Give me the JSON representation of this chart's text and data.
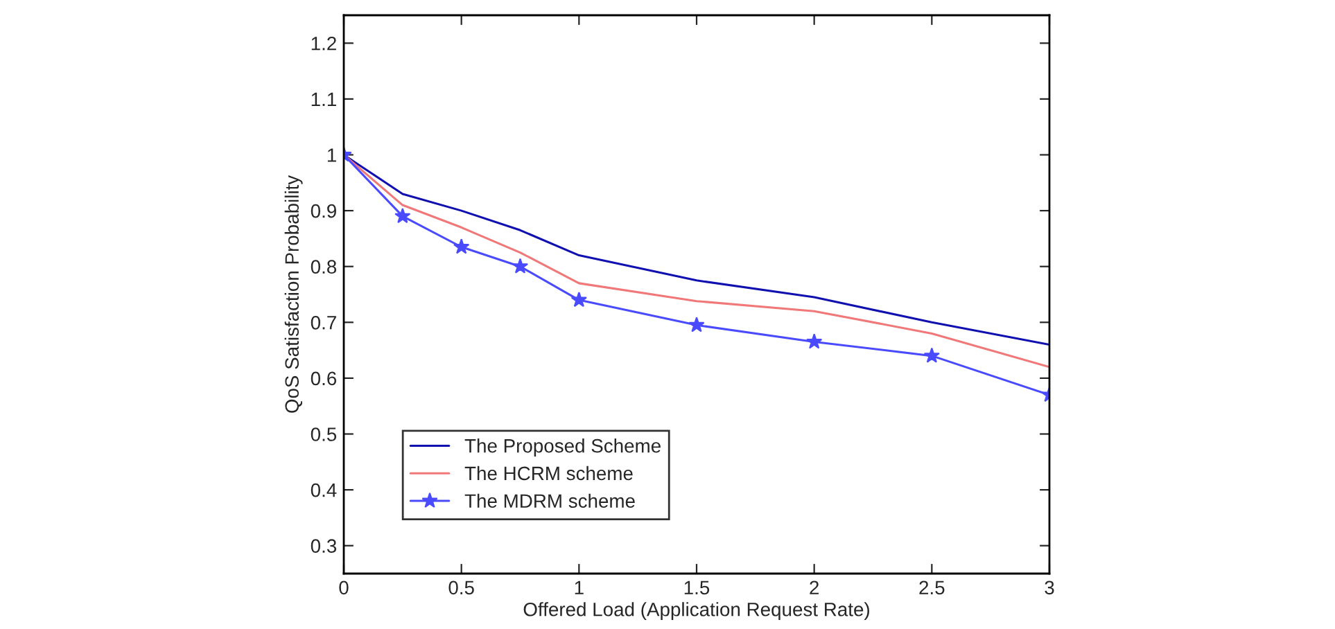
{
  "chart_data": {
    "type": "line",
    "xlabel": "Offered Load (Application Request Rate)",
    "ylabel": "QoS Satisfaction Probability",
    "x": [
      0,
      0.25,
      0.5,
      0.75,
      1,
      1.5,
      2,
      2.5,
      3
    ],
    "series": [
      {
        "name": "The Proposed Scheme",
        "color": "#1010b0",
        "values": [
          1,
          0.93,
          0.9,
          0.865,
          0.82,
          0.775,
          0.745,
          0.7,
          0.66
        ]
      },
      {
        "name": "The HCRM scheme",
        "color": "#f07878",
        "values": [
          1,
          0.91,
          0.87,
          0.825,
          0.77,
          0.738,
          0.72,
          0.68,
          0.62
        ]
      },
      {
        "name": "The MDRM scheme",
        "color": "#4a4aff",
        "marker": "star",
        "values": [
          1,
          0.89,
          0.835,
          0.8,
          0.74,
          0.695,
          0.665,
          0.64,
          0.57
        ]
      }
    ],
    "xlim": [
      0,
      3
    ],
    "xticks": [
      0,
      0.5,
      1,
      1.5,
      2,
      2.5,
      3
    ],
    "ylim": [
      0.25,
      1.25
    ],
    "yticks": [
      0.3,
      0.4,
      0.5,
      0.6,
      0.7,
      0.8,
      0.9,
      1,
      1.1,
      1.2
    ],
    "grid": false,
    "legend": "bottom left"
  }
}
